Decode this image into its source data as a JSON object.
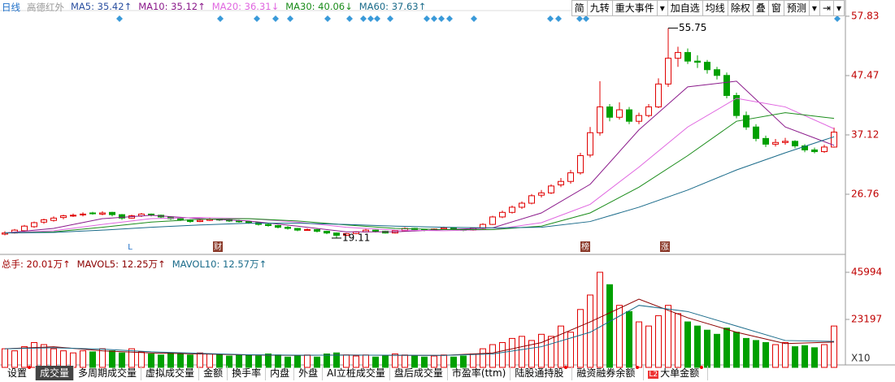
{
  "chart_data": {
    "type": "candlestick",
    "period": "日线",
    "title": "高德红外",
    "ma_labels": [
      {
        "text": "MA5: 35.42↑",
        "color": "#2a4fa0"
      },
      {
        "text": "MA10: 35.12↑",
        "color": "#8b1a8b"
      },
      {
        "text": "MA20: 36.31↓",
        "color": "#e066e0"
      },
      {
        "text": "MA30: 40.06↓",
        "color": "#1a8c1a"
      },
      {
        "text": "MA60: 37.63↑",
        "color": "#1a6b8a"
      }
    ],
    "up_color": "#e00000",
    "down_color": "#00a000",
    "candles": [
      [
        19.8,
        20.3,
        19.6,
        20.0
      ],
      [
        20.0,
        20.7,
        19.9,
        20.5
      ],
      [
        20.4,
        21.4,
        20.2,
        21.2
      ],
      [
        21.1,
        22.0,
        20.9,
        21.8
      ],
      [
        21.9,
        22.5,
        21.6,
        22.3
      ],
      [
        22.2,
        22.9,
        22.0,
        22.6
      ],
      [
        22.7,
        23.2,
        22.4,
        23.0
      ],
      [
        23.0,
        23.4,
        22.8,
        23.1
      ],
      [
        23.2,
        23.6,
        22.9,
        23.3
      ],
      [
        23.5,
        23.7,
        23.2,
        23.4
      ],
      [
        23.3,
        23.8,
        23.1,
        23.5
      ],
      [
        23.6,
        23.7,
        22.9,
        23.2
      ],
      [
        23.2,
        23.3,
        22.3,
        22.6
      ],
      [
        22.6,
        23.2,
        22.5,
        23.0
      ],
      [
        23.0,
        23.5,
        22.8,
        23.3
      ],
      [
        23.3,
        23.4,
        22.9,
        23.1
      ],
      [
        23.1,
        23.2,
        22.6,
        22.8
      ],
      [
        22.8,
        22.9,
        22.3,
        22.5
      ],
      [
        22.5,
        22.7,
        22.1,
        22.3
      ],
      [
        22.3,
        22.4,
        21.8,
        22.0
      ],
      [
        22.0,
        22.4,
        21.9,
        22.2
      ],
      [
        22.2,
        22.6,
        22.1,
        22.4
      ],
      [
        22.4,
        22.5,
        22.1,
        22.3
      ],
      [
        22.3,
        22.4,
        21.9,
        22.1
      ],
      [
        22.1,
        22.3,
        21.8,
        22.0
      ],
      [
        22.0,
        22.1,
        21.6,
        21.8
      ],
      [
        21.8,
        21.9,
        21.3,
        21.5
      ],
      [
        21.5,
        21.7,
        21.1,
        21.3
      ],
      [
        21.3,
        21.4,
        20.8,
        21.0
      ],
      [
        21.0,
        21.2,
        20.6,
        20.8
      ],
      [
        20.8,
        20.9,
        20.3,
        20.5
      ],
      [
        20.5,
        20.8,
        20.4,
        20.6
      ],
      [
        20.6,
        20.7,
        20.1,
        20.3
      ],
      [
        20.3,
        20.4,
        19.8,
        20.0
      ],
      [
        20.0,
        20.1,
        19.11,
        19.6
      ],
      [
        19.6,
        20.0,
        19.5,
        19.9
      ],
      [
        19.9,
        20.3,
        19.8,
        20.2
      ],
      [
        20.2,
        20.7,
        20.1,
        20.5
      ],
      [
        20.5,
        20.6,
        20.1,
        20.3
      ],
      [
        20.3,
        20.4,
        19.9,
        20.0
      ],
      [
        20.0,
        20.5,
        19.9,
        20.4
      ],
      [
        20.4,
        21.0,
        20.3,
        20.8
      ],
      [
        20.8,
        20.9,
        20.4,
        20.6
      ],
      [
        20.6,
        20.7,
        20.3,
        20.5
      ],
      [
        20.5,
        20.8,
        20.4,
        20.7
      ],
      [
        20.7,
        21.1,
        20.6,
        20.9
      ],
      [
        20.9,
        21.0,
        20.5,
        20.6
      ],
      [
        20.6,
        20.7,
        20.3,
        20.5
      ],
      [
        20.5,
        20.9,
        20.4,
        20.8
      ],
      [
        20.8,
        21.7,
        20.7,
        21.5
      ],
      [
        21.5,
        23.0,
        21.4,
        22.8
      ],
      [
        22.8,
        23.9,
        22.6,
        23.6
      ],
      [
        23.6,
        24.8,
        23.4,
        24.5
      ],
      [
        24.5,
        25.5,
        24.2,
        25.2
      ],
      [
        25.2,
        26.8,
        25.0,
        26.5
      ],
      [
        26.6,
        27.5,
        26.2,
        27.0
      ],
      [
        27.0,
        28.5,
        26.8,
        28.2
      ],
      [
        28.4,
        29.6,
        28.0,
        29.0
      ],
      [
        29.0,
        31.0,
        28.6,
        30.5
      ],
      [
        30.5,
        34.0,
        30.2,
        33.5
      ],
      [
        33.6,
        38.5,
        33.2,
        37.5
      ],
      [
        37.5,
        46.5,
        37.0,
        42.0
      ],
      [
        42.0,
        42.5,
        39.5,
        40.2
      ],
      [
        40.2,
        42.8,
        39.8,
        41.5
      ],
      [
        41.5,
        42.0,
        39.0,
        39.5
      ],
      [
        39.5,
        41.0,
        39.0,
        40.5
      ],
      [
        40.5,
        42.5,
        40.2,
        42.0
      ],
      [
        42.0,
        47.0,
        41.8,
        46.0
      ],
      [
        46.0,
        55.75,
        45.5,
        50.5
      ],
      [
        50.5,
        52.5,
        49.0,
        51.5
      ],
      [
        51.5,
        52.2,
        49.5,
        50.0
      ],
      [
        50.0,
        51.0,
        48.8,
        49.8
      ],
      [
        49.8,
        50.2,
        47.8,
        48.5
      ],
      [
        48.5,
        49.0,
        46.8,
        47.5
      ],
      [
        47.5,
        48.0,
        43.5,
        44.0
      ],
      [
        44.0,
        44.5,
        40.0,
        40.5
      ],
      [
        40.5,
        41.2,
        38.0,
        38.5
      ],
      [
        38.5,
        39.0,
        36.0,
        36.5
      ],
      [
        36.5,
        37.0,
        35.0,
        35.5
      ],
      [
        35.5,
        36.4,
        35.1,
        35.8
      ],
      [
        35.8,
        36.6,
        35.4,
        36.0
      ],
      [
        36.0,
        36.2,
        34.8,
        35.2
      ],
      [
        35.2,
        35.5,
        34.1,
        34.5
      ],
      [
        34.5,
        34.9,
        33.9,
        34.2
      ],
      [
        34.2,
        35.4,
        34.0,
        35.0
      ],
      [
        35.0,
        38.4,
        34.9,
        37.6
      ]
    ],
    "ylim": [
      17.4,
      58.96
    ],
    "yticks": [
      26.76,
      37.12,
      47.47,
      57.83
    ],
    "tick_color": "#c00000",
    "lines_x": [
      0,
      5,
      10,
      15,
      20,
      25,
      30,
      35,
      40,
      45,
      50,
      55,
      60,
      65,
      70,
      75,
      80,
      85
    ],
    "lines": [
      {
        "color": "#8b1a8b",
        "values": [
          20.0,
          20.8,
          22.5,
          23.1,
          22.5,
          22.1,
          21.2,
          20.2,
          20.2,
          20.6,
          20.9,
          23.5,
          28.5,
          38.0,
          45.5,
          46.5,
          38.5,
          35.3
        ]
      },
      {
        "color": "#e066e0",
        "values": [
          20.0,
          20.4,
          21.5,
          22.5,
          22.7,
          22.5,
          21.9,
          21.0,
          20.5,
          20.4,
          20.6,
          21.8,
          25.0,
          31.5,
          38.5,
          43.5,
          42.0,
          38.2
        ]
      },
      {
        "color": "#1a8c1a",
        "values": [
          20.0,
          20.2,
          21.0,
          21.9,
          22.4,
          22.5,
          22.1,
          21.4,
          20.8,
          20.6,
          20.6,
          21.2,
          23.5,
          28.0,
          33.5,
          39.5,
          41.0,
          40.0
        ]
      },
      {
        "color": "#1a6b8a",
        "values": [
          20.0,
          20.1,
          20.5,
          21.0,
          21.4,
          21.7,
          21.7,
          21.5,
          21.2,
          21.0,
          20.9,
          21.0,
          22.0,
          24.5,
          27.5,
          31.0,
          34.0,
          36.8
        ]
      }
    ],
    "event_markers": [
      "L",
      "财",
      "榜",
      "涨"
    ],
    "volume": {
      "labels": [
        {
          "text": "总手: 20.01万↑",
          "color": "#a00000"
        },
        {
          "text": "MAVOL5: 12.25万↑",
          "color": "#8b0000"
        },
        {
          "text": "MAVOL10: 12.57万↑",
          "color": "#1a6b8a"
        }
      ],
      "values": [
        9000,
        8000,
        10000,
        12000,
        11000,
        9000,
        8000,
        7000,
        8000,
        7500,
        9000,
        8000,
        7000,
        9000,
        7500,
        6500,
        6000,
        7000,
        6500,
        6000,
        7000,
        6500,
        6000,
        5500,
        6000,
        6000,
        5500,
        6500,
        6000,
        5000,
        5500,
        6000,
        5000,
        6500,
        7000,
        6000,
        5500,
        6000,
        5000,
        5500,
        6500,
        6000,
        5500,
        5000,
        5500,
        6000,
        5000,
        5500,
        6500,
        9000,
        11000,
        12000,
        14000,
        15000,
        13000,
        16000,
        15000,
        20000,
        17000,
        28000,
        35000,
        46000,
        40000,
        30000,
        27000,
        22000,
        20000,
        25000,
        30000,
        26000,
        22000,
        20000,
        18000,
        16000,
        19000,
        17000,
        14000,
        13000,
        12000,
        11000,
        12000,
        10000,
        10500,
        9500,
        11000,
        20000
      ],
      "ylim": [
        0,
        49150
      ],
      "yticks": [
        23197,
        45994
      ],
      "unit": "X10",
      "lines": [
        {
          "color": "#8b0000",
          "values": [
            9000,
            10000,
            8000,
            7000,
            6500,
            6000,
            5800,
            6000,
            5800,
            5800,
            7000,
            12000,
            22000,
            33000,
            24000,
            17000,
            11500,
            12250
          ]
        },
        {
          "color": "#1a6b8a",
          "values": [
            9000,
            9500,
            8800,
            7500,
            6800,
            6100,
            5900,
            5900,
            5900,
            5800,
            6500,
            10000,
            17000,
            30000,
            27000,
            20000,
            13000,
            12570
          ]
        }
      ]
    },
    "toolbar": [
      "简",
      "九转",
      "重大事件",
      "▾",
      "加自选",
      "均线",
      "除权",
      "叠",
      "窗",
      "预测",
      "▾",
      "⇥",
      "▾"
    ],
    "tabs": [
      {
        "text": "设置",
        "dot": true
      },
      {
        "text": "成交量",
        "selected": true
      },
      {
        "text": "多周期成交量"
      },
      {
        "text": "虚拟成交量"
      },
      {
        "text": "金额"
      },
      {
        "text": "换手率"
      },
      {
        "text": "内盘"
      },
      {
        "text": "外盘"
      },
      {
        "text": "AI立桩成交量"
      },
      {
        "text": "盘后成交量"
      },
      {
        "text": "市盈率(ttm)"
      },
      {
        "text": "陆股通持股",
        "dot": true
      },
      {
        "text": "融资融券余额",
        "dot": true
      },
      {
        "text": "大单金额",
        "dot": true,
        "badge": "L2"
      }
    ]
  }
}
